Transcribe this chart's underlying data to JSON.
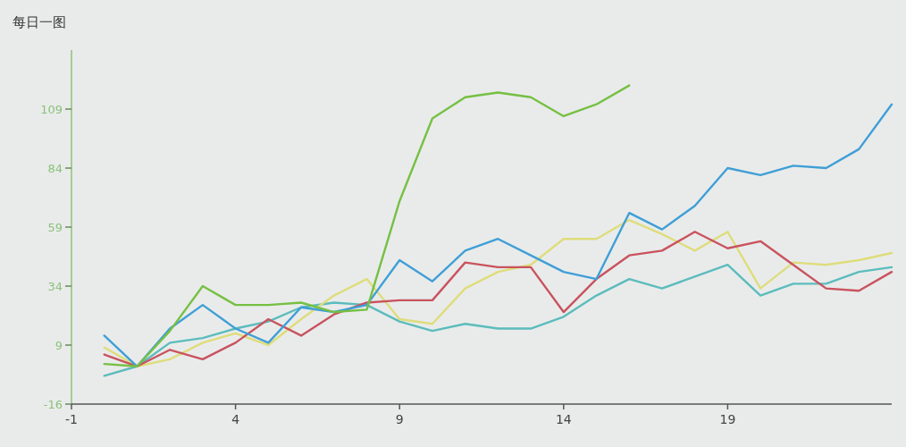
{
  "chart_data": {
    "type": "line",
    "title": "每日一图",
    "x": [
      0,
      1,
      2,
      3,
      4,
      5,
      6,
      7,
      8,
      9,
      10,
      11,
      12,
      13,
      14,
      15,
      16,
      17,
      18,
      19,
      20,
      21,
      22,
      23,
      24
    ],
    "xlim": [
      -1,
      24
    ],
    "xticks": [
      -1,
      4,
      9,
      14,
      19
    ],
    "ylim": [
      -16,
      134
    ],
    "yticks": [
      -16,
      9,
      34,
      59,
      84,
      109
    ],
    "line_style": "solid",
    "series": [
      {
        "color": "#5cbcbc",
        "values": [
          -4,
          0,
          10,
          12,
          16,
          19,
          25,
          27,
          26,
          19,
          15,
          18,
          16,
          16,
          21,
          30,
          37,
          33,
          38,
          43,
          30,
          35,
          35,
          40,
          42
        ]
      },
      {
        "color": "#dedd7c",
        "values": [
          8,
          0,
          3,
          10,
          14,
          9,
          20,
          30,
          37,
          20,
          18,
          33,
          40,
          43,
          54,
          54,
          62,
          56,
          49,
          57,
          33,
          44,
          43,
          45,
          48
        ]
      },
      {
        "color": "#c9535e",
        "values": [
          5,
          0,
          7,
          3,
          10,
          20,
          13,
          22,
          27,
          28,
          28,
          44,
          42,
          42,
          23,
          37,
          47,
          49,
          57,
          50,
          53,
          43,
          33,
          32,
          40
        ]
      },
      {
        "color": "#3f9fd6",
        "values": [
          13,
          0,
          16,
          26,
          16,
          10,
          25,
          23,
          26,
          45,
          36,
          49,
          54,
          47,
          40,
          37,
          65,
          58,
          68,
          84,
          81,
          85,
          84,
          92,
          111
        ]
      },
      {
        "color": "#76c043",
        "values": [
          1,
          0,
          15,
          34,
          26,
          26,
          27,
          23,
          24,
          70,
          105,
          114,
          116,
          114,
          106,
          111,
          119,
          null,
          null,
          null,
          null,
          null,
          null,
          null,
          null
        ]
      }
    ]
  }
}
